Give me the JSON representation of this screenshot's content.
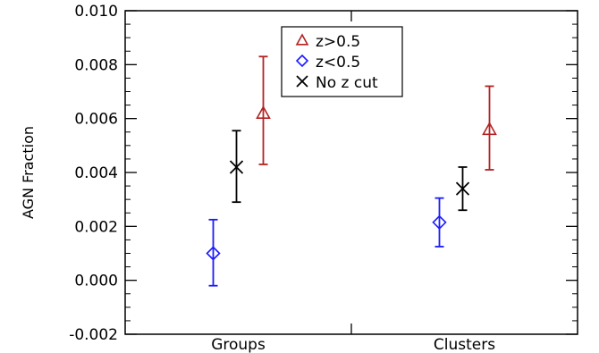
{
  "chart_data": {
    "type": "scatter",
    "title": "",
    "xlabel": "",
    "ylabel": "AGN Fraction",
    "ylim": [
      -0.002,
      0.01
    ],
    "categories": [
      "Groups",
      "Clusters"
    ],
    "yticks": [
      "-0.002",
      "0.000",
      "0.002",
      "0.004",
      "0.006",
      "0.008",
      "0.010"
    ],
    "grid": false,
    "legend_position": "top-center",
    "series": [
      {
        "name": "z>0.5",
        "marker": "triangle",
        "color": "#b22222",
        "points": [
          {
            "category": "Groups",
            "y": 0.0062,
            "yerr_low": 0.0043,
            "yerr_high": 0.0083
          },
          {
            "category": "Clusters",
            "y": 0.0056,
            "yerr_low": 0.0041,
            "yerr_high": 0.0072
          }
        ]
      },
      {
        "name": "z<0.5",
        "marker": "diamond",
        "color": "#1a1aff",
        "points": [
          {
            "category": "Groups",
            "y": 0.001,
            "yerr_low": -0.0002,
            "yerr_high": 0.00225
          },
          {
            "category": "Clusters",
            "y": 0.00215,
            "yerr_low": 0.00125,
            "yerr_high": 0.00305
          }
        ]
      },
      {
        "name": "No z cut",
        "marker": "cross",
        "color": "#000000",
        "points": [
          {
            "category": "Groups",
            "y": 0.0042,
            "yerr_low": 0.0029,
            "yerr_high": 0.00555
          },
          {
            "category": "Clusters",
            "y": 0.0034,
            "yerr_low": 0.0026,
            "yerr_high": 0.0042
          }
        ]
      }
    ]
  }
}
